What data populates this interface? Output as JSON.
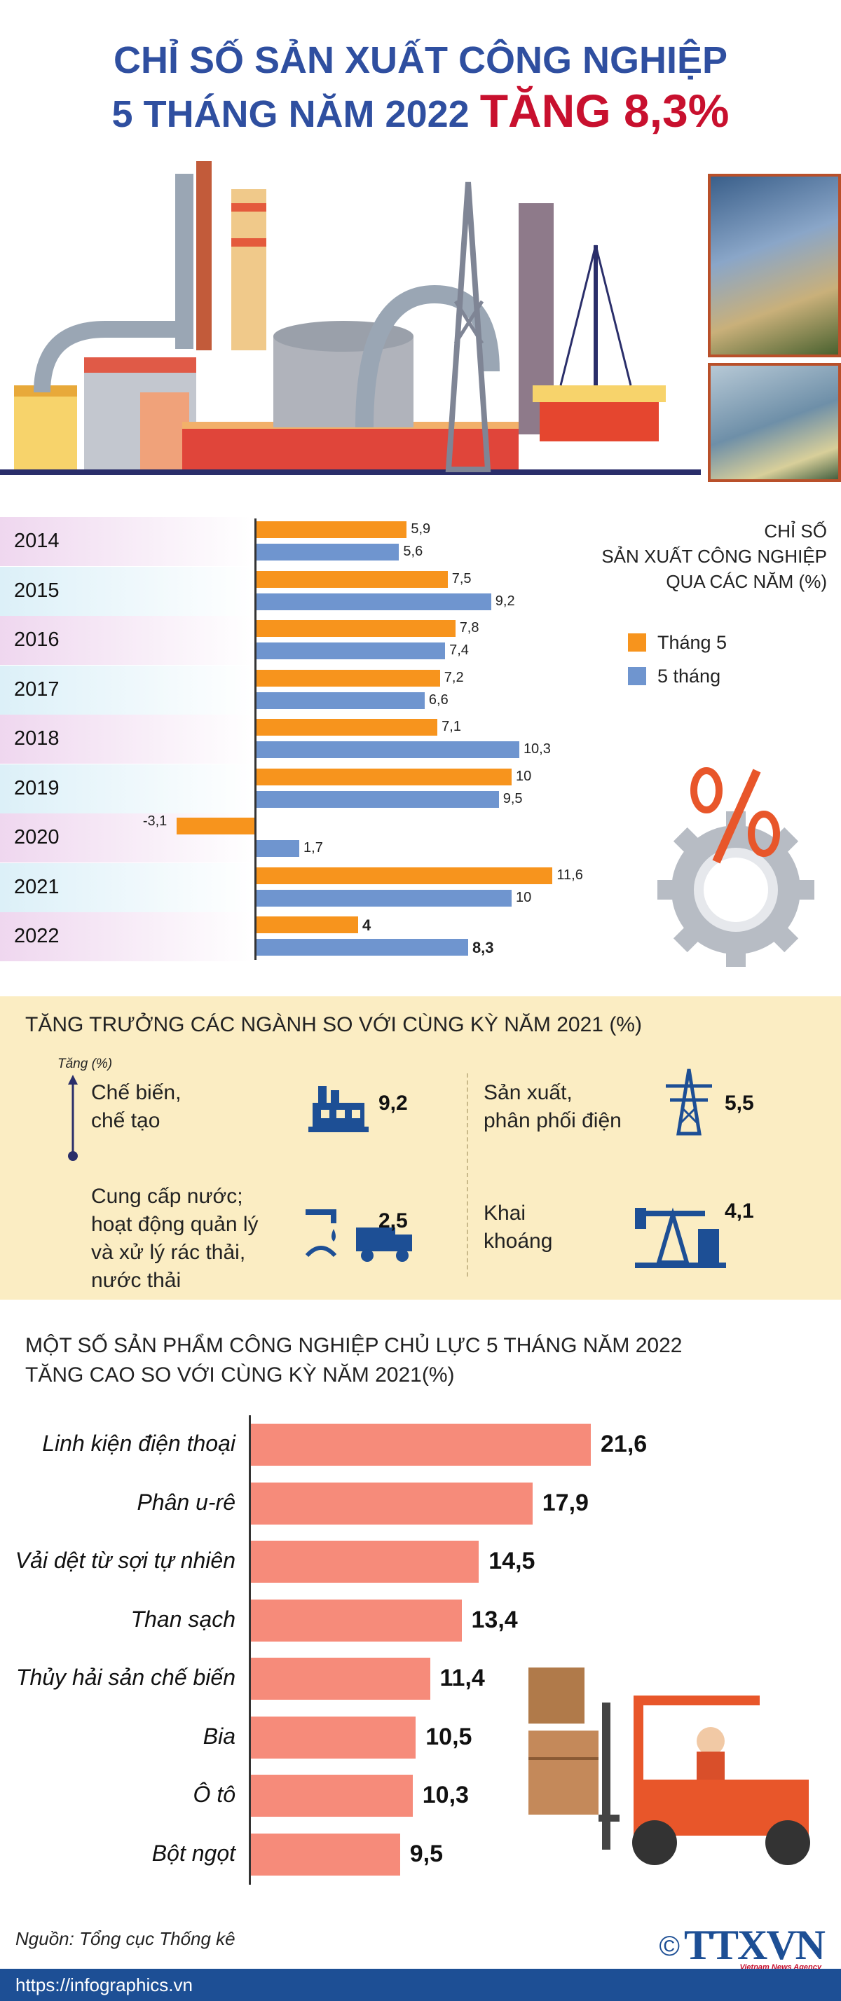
{
  "title": {
    "line1": "CHỈ SỐ SẢN XUẤT CÔNG NGHIỆP",
    "line2_prefix": "5 THÁNG NĂM 2022",
    "line2_highlight": "TĂNG 8,3%"
  },
  "chart_data": [
    {
      "type": "bar",
      "orientation": "horizontal",
      "title": "CHỈ SỐ SẢN XUẤT CÔNG NGHIỆP QUA CÁC NĂM (%)",
      "title_lines": [
        "CHỈ SỐ",
        "SẢN XUẤT CÔNG NGHIỆP",
        "QUA CÁC NĂM (%)"
      ],
      "categories": [
        "2014",
        "2015",
        "2016",
        "2017",
        "2018",
        "2019",
        "2020",
        "2021",
        "2022"
      ],
      "series": [
        {
          "name": "Tháng 5",
          "color": "#f7941d",
          "values": [
            5.9,
            7.5,
            7.8,
            7.2,
            7.1,
            10,
            -3.1,
            11.6,
            4
          ],
          "labels": [
            "5,9",
            "7,5",
            "7,8",
            "7,2",
            "7,1",
            "10",
            "-3,1",
            "11,6",
            "4"
          ]
        },
        {
          "name": "5 tháng",
          "color": "#6f95cf",
          "values": [
            5.6,
            9.2,
            7.4,
            6.6,
            10.3,
            9.5,
            1.7,
            10,
            8.3
          ],
          "labels": [
            "5,6",
            "9,2",
            "7,4",
            "6,6",
            "10,3",
            "9,5",
            "1,7",
            "10",
            "8,3"
          ]
        }
      ],
      "xlim": [
        -3.5,
        12
      ],
      "band_colors": [
        "#efd7ef",
        "#dcf0f8"
      ]
    },
    {
      "type": "bar",
      "orientation": "horizontal",
      "title": "MỘT SỐ SẢN PHẨM CÔNG NGHIỆP CHỦ LỰC 5 THÁNG NĂM 2022 TĂNG CAO SO VỚI CÙNG KỲ NĂM 2021(%)",
      "title_lines": [
        "MỘT SỐ SẢN PHẨM CÔNG NGHIỆP CHỦ LỰC 5 THÁNG NĂM 2022",
        "TĂNG CAO SO VỚI CÙNG KỲ NĂM 2021(%)"
      ],
      "categories": [
        "Linh kiện điện thoại",
        "Phân u-rê",
        "Vải dệt từ sợi tự nhiên",
        "Than sạch",
        "Thủy hải sản chế biến",
        "Bia",
        "Ô tô",
        "Bột ngọt"
      ],
      "values": [
        21.6,
        17.9,
        14.5,
        13.4,
        11.4,
        10.5,
        10.3,
        9.5
      ],
      "labels": [
        "21,6",
        "17,9",
        "14,5",
        "13,4",
        "11,4",
        "10,5",
        "10,3",
        "9,5"
      ],
      "color": "#f68b7a",
      "xlim": [
        0,
        25
      ]
    }
  ],
  "sectors": {
    "heading": "TĂNG TRƯỞNG CÁC NGÀNH SO VỚI CÙNG KỲ NĂM 2021 (%)",
    "axis_label": "Tăng (%)",
    "items": [
      {
        "label_l1": "Chế biến,",
        "label_l2": "chế tạo",
        "value": "9,2",
        "icon": "factory-icon"
      },
      {
        "label_l1": "Sản xuất,",
        "label_l2": "phân phối điện",
        "value": "5,5",
        "icon": "power-tower-icon"
      },
      {
        "label_l1": "Cung cấp nước;",
        "label_l2": "hoạt động quản lý",
        "label_l3": "và xử lý rác thải,",
        "label_l4": "nước thải",
        "value": "2,5",
        "icon": "water-truck-icon"
      },
      {
        "label_l1": "Khai",
        "label_l2": "khoáng",
        "value": "4,1",
        "icon": "oil-pump-icon"
      }
    ]
  },
  "source": "Nguồn: Tổng cục Thống kê",
  "footer": {
    "url": "https://infographics.vn",
    "copyright": "©",
    "logo": "TTXVN",
    "logo_sub": "Vietnam News Agency"
  }
}
